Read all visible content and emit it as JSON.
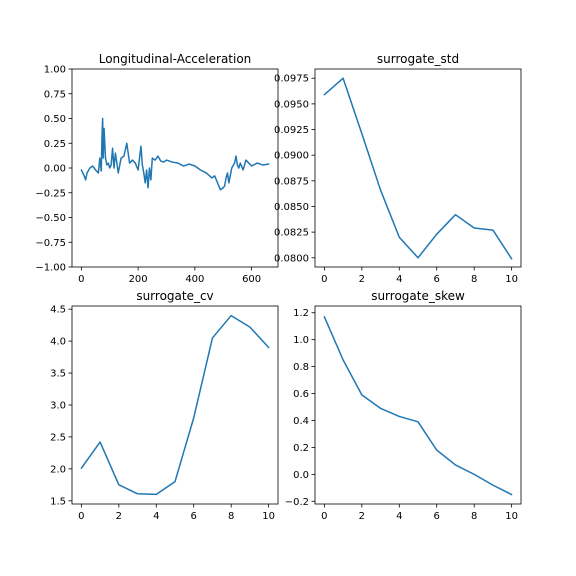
{
  "chart_data": [
    {
      "type": "line",
      "title": "Longitudinal-Acceleration",
      "xlabel": "",
      "ylabel": "",
      "xlim": [
        -33,
        693
      ],
      "ylim": [
        -1.0,
        1.0
      ],
      "xticks": [
        0,
        200,
        400,
        600
      ],
      "xtick_labels": [
        "0",
        "200",
        "400",
        "600"
      ],
      "yticks": [
        -1.0,
        -0.75,
        -0.5,
        -0.25,
        0.0,
        0.25,
        0.5,
        0.75,
        1.0
      ],
      "ytick_labels": [
        "−1.00",
        "−0.75",
        "−0.50",
        "−0.25",
        "0.00",
        "0.25",
        "0.50",
        "0.75",
        "1.00"
      ],
      "color": "#1f77b4",
      "x": [
        0,
        5,
        10,
        15,
        20,
        30,
        40,
        50,
        60,
        65,
        70,
        73,
        75,
        77,
        80,
        85,
        90,
        95,
        100,
        105,
        110,
        115,
        120,
        125,
        130,
        140,
        150,
        160,
        170,
        180,
        190,
        200,
        205,
        210,
        215,
        220,
        225,
        230,
        235,
        240,
        245,
        250,
        260,
        270,
        280,
        290,
        300,
        320,
        340,
        360,
        380,
        400,
        420,
        440,
        460,
        470,
        480,
        490,
        500,
        505,
        510,
        515,
        520,
        530,
        540,
        545,
        550,
        555,
        560,
        570,
        580,
        600,
        620,
        640,
        660
      ],
      "y": [
        -0.02,
        -0.05,
        -0.08,
        -0.12,
        -0.05,
        0.0,
        0.02,
        -0.02,
        -0.05,
        0.1,
        -0.03,
        0.35,
        0.5,
        0.1,
        0.4,
        0.1,
        0.03,
        0.05,
        0.0,
        0.03,
        0.2,
        0.0,
        0.15,
        0.05,
        -0.05,
        0.1,
        0.12,
        0.25,
        0.05,
        0.08,
        0.05,
        -0.02,
        0.1,
        0.22,
        0.03,
        -0.05,
        -0.15,
        -0.02,
        -0.2,
        0.0,
        -0.12,
        0.1,
        0.08,
        0.12,
        0.07,
        0.06,
        0.08,
        0.06,
        0.05,
        0.02,
        0.04,
        0.02,
        -0.02,
        -0.05,
        -0.1,
        -0.08,
        -0.15,
        -0.22,
        -0.2,
        -0.18,
        -0.1,
        -0.05,
        -0.15,
        0.0,
        0.05,
        0.12,
        0.03,
        0.0,
        0.05,
        -0.02,
        0.08,
        0.02,
        0.05,
        0.03,
        0.04
      ]
    },
    {
      "type": "line",
      "title": "surrogate_std",
      "xlabel": "",
      "ylabel": "",
      "xlim": [
        -0.5,
        10.5
      ],
      "ylim": [
        0.0791,
        0.0984
      ],
      "xticks": [
        0,
        2,
        4,
        6,
        8,
        10
      ],
      "xtick_labels": [
        "0",
        "2",
        "4",
        "6",
        "8",
        "10"
      ],
      "yticks": [
        0.08,
        0.0825,
        0.085,
        0.0875,
        0.09,
        0.0925,
        0.095,
        0.0975
      ],
      "ytick_labels": [
        "0.0800",
        "0.0825",
        "0.0850",
        "0.0875",
        "0.0900",
        "0.0925",
        "0.0950",
        "0.0975"
      ],
      "color": "#1f77b4",
      "x": [
        0,
        1,
        2,
        3,
        4,
        5,
        6,
        7,
        8,
        9,
        10
      ],
      "y": [
        0.0959,
        0.0975,
        0.0921,
        0.0866,
        0.082,
        0.08,
        0.0823,
        0.0842,
        0.0829,
        0.0827,
        0.0799
      ]
    },
    {
      "type": "line",
      "title": "surrogate_cv",
      "xlabel": "",
      "ylabel": "",
      "xlim": [
        -0.5,
        10.5
      ],
      "ylim": [
        1.45,
        4.55
      ],
      "xticks": [
        0,
        2,
        4,
        6,
        8,
        10
      ],
      "xtick_labels": [
        "0",
        "2",
        "4",
        "6",
        "8",
        "10"
      ],
      "yticks": [
        1.5,
        2.0,
        2.5,
        3.0,
        3.5,
        4.0,
        4.5
      ],
      "ytick_labels": [
        "1.5",
        "2.0",
        "2.5",
        "3.0",
        "3.5",
        "4.0",
        "4.5"
      ],
      "color": "#1f77b4",
      "x": [
        0,
        1,
        2,
        3,
        4,
        5,
        6,
        7,
        8,
        9,
        10
      ],
      "y": [
        2.01,
        2.42,
        1.75,
        1.61,
        1.6,
        1.8,
        2.8,
        4.05,
        4.4,
        4.22,
        3.9
      ]
    },
    {
      "type": "line",
      "title": "surrogate_skew",
      "xlabel": "",
      "ylabel": "",
      "xlim": [
        -0.5,
        10.5
      ],
      "ylim": [
        -0.22,
        1.25
      ],
      "xticks": [
        0,
        2,
        4,
        6,
        8,
        10
      ],
      "xtick_labels": [
        "0",
        "2",
        "4",
        "6",
        "8",
        "10"
      ],
      "yticks": [
        -0.2,
        0.0,
        0.2,
        0.4,
        0.6,
        0.8,
        1.0,
        1.2
      ],
      "ytick_labels": [
        "−0.2",
        "0.0",
        "0.2",
        "0.4",
        "0.6",
        "0.8",
        "1.0",
        "1.2"
      ],
      "color": "#1f77b4",
      "x": [
        0,
        1,
        2,
        3,
        4,
        5,
        6,
        7,
        8,
        9,
        10
      ],
      "y": [
        1.17,
        0.85,
        0.59,
        0.49,
        0.43,
        0.39,
        0.18,
        0.07,
        0.0,
        -0.08,
        -0.15
      ]
    }
  ]
}
